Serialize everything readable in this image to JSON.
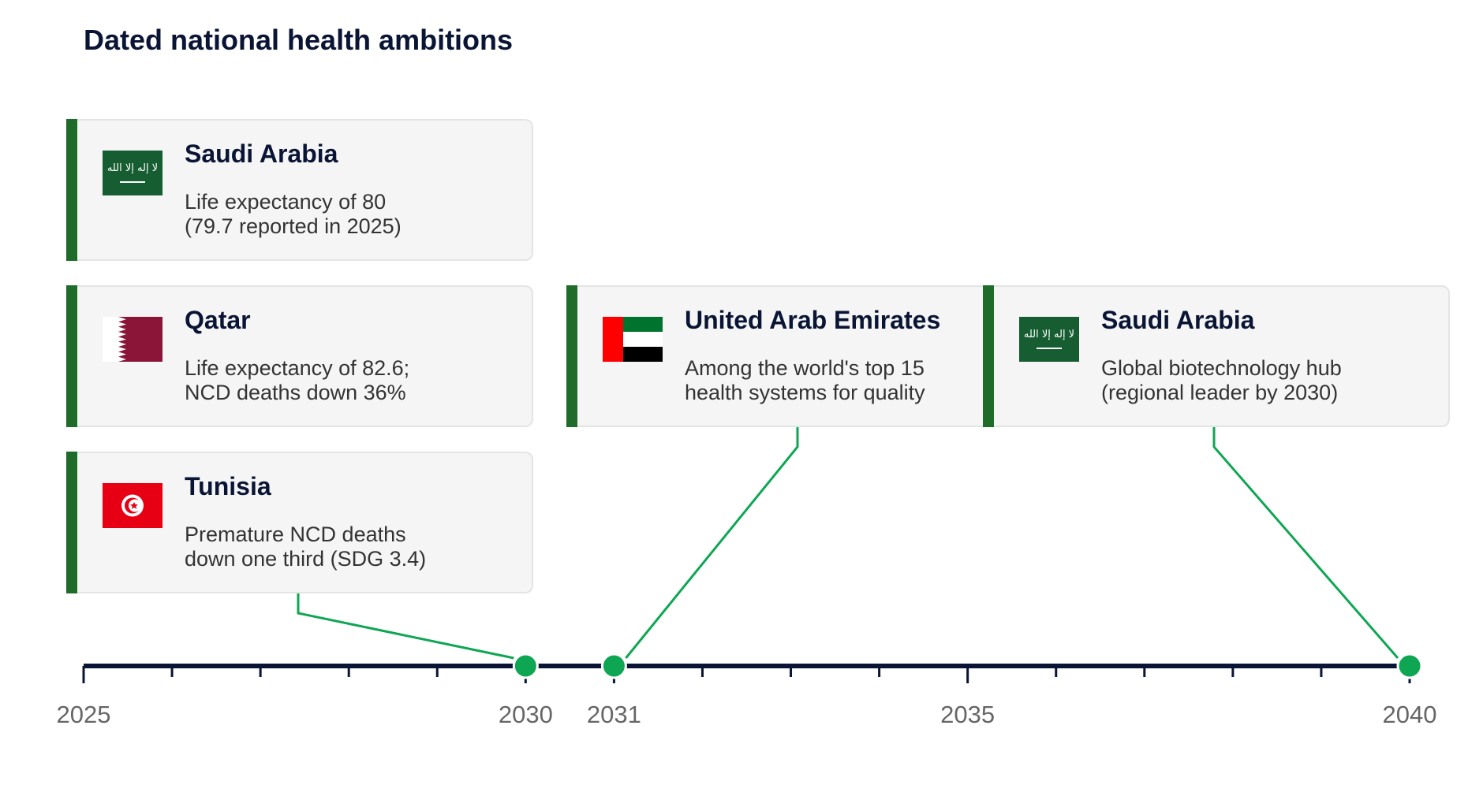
{
  "title": "Dated national health ambitions",
  "colors": {
    "axis": "#0a1535",
    "marker": "#0fa653",
    "card_accent": "#1e6b2a",
    "card_bg": "#f4f5f4"
  },
  "chart_data": {
    "type": "timeline",
    "title": "Dated national health ambitions",
    "xlim": [
      2025,
      2040
    ],
    "major_ticks": [
      2025,
      2030,
      2031,
      2035,
      2040
    ],
    "minor_tick_step": 1,
    "events": [
      {
        "year": 2030,
        "country": "Saudi Arabia",
        "flag": "saudi-flag-icon",
        "lines": [
          "Life expectancy of 80",
          "(79.7 reported in 2025)"
        ]
      },
      {
        "year": 2030,
        "country": "Qatar",
        "flag": "qatar-flag-icon",
        "lines": [
          "Life expectancy of 82.6;",
          "NCD deaths down 36%"
        ]
      },
      {
        "year": 2030,
        "country": "Tunisia",
        "flag": "tunisia-flag-icon",
        "lines": [
          "Premature NCD deaths",
          "down one third (SDG 3.4)"
        ]
      },
      {
        "year": 2031,
        "country": "United Arab Emirates",
        "flag": "uae-flag-icon",
        "lines": [
          "Among the world's top 15",
          "health systems for quality"
        ]
      },
      {
        "year": 2040,
        "country": "Saudi Arabia",
        "flag": "saudi-flag-icon",
        "lines": [
          "Global biotechnology hub",
          "(regional leader by 2030)"
        ]
      }
    ]
  }
}
